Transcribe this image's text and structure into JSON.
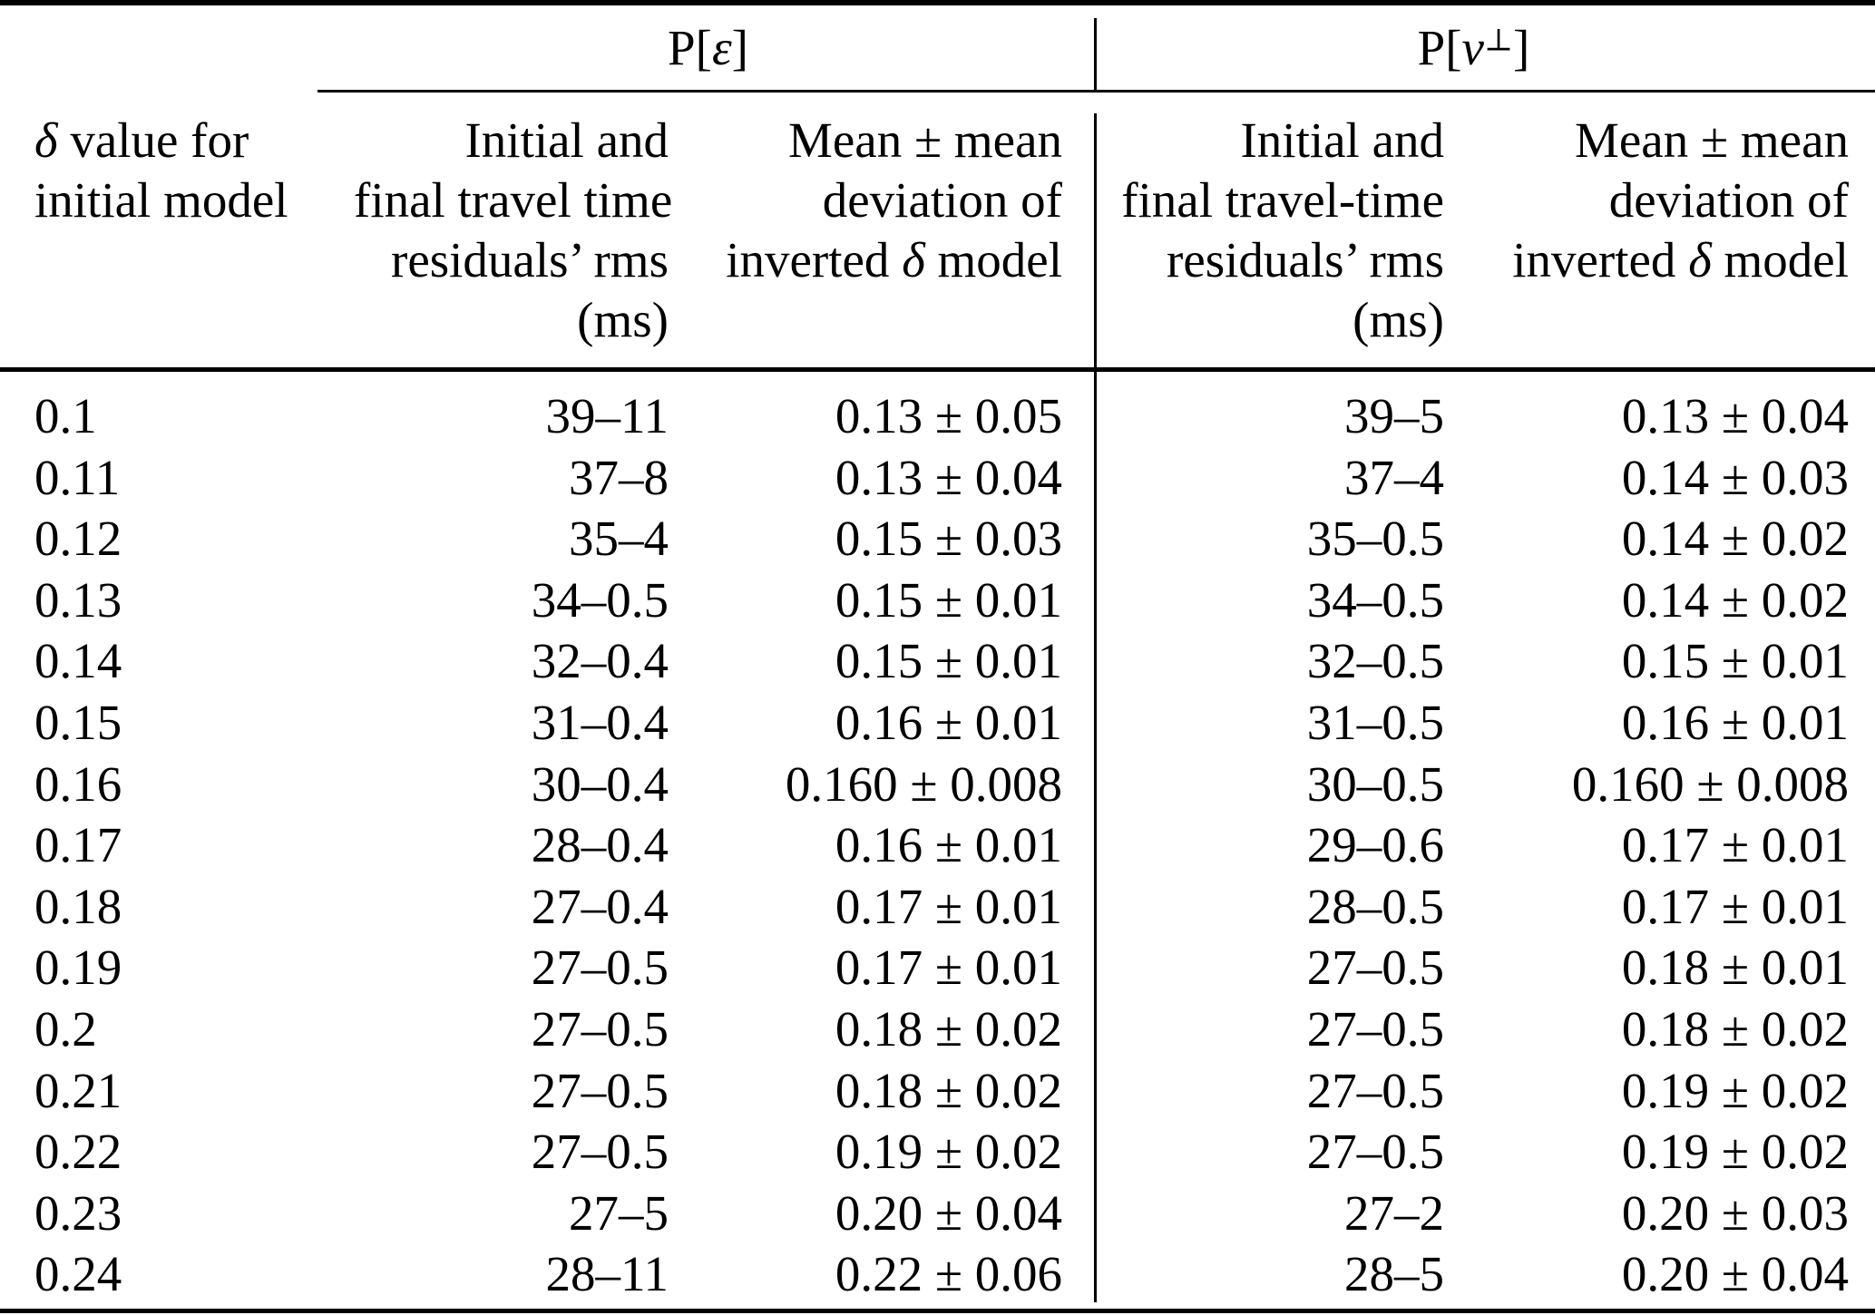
{
  "table": {
    "group_headers": {
      "p_epsilon": {
        "prefix": "P[",
        "sym": "ε",
        "suffix": "]"
      },
      "p_vperp": {
        "prefix": "P[",
        "sym": "v",
        "sup": "⊥",
        "suffix": "]"
      }
    },
    "col1_header": {
      "sym": "δ",
      "line1_rest": " value for",
      "line2": "initial model"
    },
    "col2_header": {
      "lines": [
        "Initial and",
        "final travel time",
        "residuals’ rms",
        "(ms)"
      ]
    },
    "col3_header": {
      "line1": "Mean ± mean",
      "line2": "deviation of",
      "line3_pre": "inverted ",
      "line3_sym": "δ",
      "line3_post": " model"
    },
    "col4_header": {
      "lines": [
        "Initial and",
        "final travel-time",
        "residuals’ rms",
        "(ms)"
      ]
    },
    "col5_header": {
      "line1": "Mean ± mean",
      "line2": "deviation of",
      "line3_pre": "inverted ",
      "line3_sym": "δ",
      "line3_post": " model"
    },
    "rows": [
      {
        "delta": "0.1",
        "eps_rms": "39–11",
        "eps_dev": "0.13 ± 0.05",
        "vperp_rms": "39–5",
        "vperp_dev": "0.13 ± 0.04"
      },
      {
        "delta": "0.11",
        "eps_rms": "37–8",
        "eps_dev": "0.13 ± 0.04",
        "vperp_rms": "37–4",
        "vperp_dev": "0.14 ± 0.03"
      },
      {
        "delta": "0.12",
        "eps_rms": "35–4",
        "eps_dev": "0.15 ± 0.03",
        "vperp_rms": "35–0.5",
        "vperp_dev": "0.14 ± 0.02"
      },
      {
        "delta": "0.13",
        "eps_rms": "34–0.5",
        "eps_dev": "0.15 ± 0.01",
        "vperp_rms": "34–0.5",
        "vperp_dev": "0.14 ± 0.02"
      },
      {
        "delta": "0.14",
        "eps_rms": "32–0.4",
        "eps_dev": "0.15 ± 0.01",
        "vperp_rms": "32–0.5",
        "vperp_dev": "0.15 ± 0.01"
      },
      {
        "delta": "0.15",
        "eps_rms": "31–0.4",
        "eps_dev": "0.16 ± 0.01",
        "vperp_rms": "31–0.5",
        "vperp_dev": "0.16 ± 0.01"
      },
      {
        "delta": "0.16",
        "eps_rms": "30–0.4",
        "eps_dev": "0.160 ± 0.008",
        "vperp_rms": "30–0.5",
        "vperp_dev": "0.160 ± 0.008"
      },
      {
        "delta": "0.17",
        "eps_rms": "28–0.4",
        "eps_dev": "0.16 ± 0.01",
        "vperp_rms": "29–0.6",
        "vperp_dev": "0.17 ± 0.01"
      },
      {
        "delta": "0.18",
        "eps_rms": "27–0.4",
        "eps_dev": "0.17 ± 0.01",
        "vperp_rms": "28–0.5",
        "vperp_dev": "0.17 ± 0.01"
      },
      {
        "delta": "0.19",
        "eps_rms": "27–0.5",
        "eps_dev": "0.17 ± 0.01",
        "vperp_rms": "27–0.5",
        "vperp_dev": "0.18 ± 0.01"
      },
      {
        "delta": "0.2",
        "eps_rms": "27–0.5",
        "eps_dev": "0.18 ± 0.02",
        "vperp_rms": "27–0.5",
        "vperp_dev": "0.18 ± 0.02"
      },
      {
        "delta": "0.21",
        "eps_rms": "27–0.5",
        "eps_dev": "0.18 ± 0.02",
        "vperp_rms": "27–0.5",
        "vperp_dev": "0.19 ± 0.02"
      },
      {
        "delta": "0.22",
        "eps_rms": "27–0.5",
        "eps_dev": "0.19 ± 0.02",
        "vperp_rms": "27–0.5",
        "vperp_dev": "0.19 ± 0.02"
      },
      {
        "delta": "0.23",
        "eps_rms": "27–5",
        "eps_dev": "0.20 ± 0.04",
        "vperp_rms": "27–2",
        "vperp_dev": "0.20 ± 0.03"
      },
      {
        "delta": "0.24",
        "eps_rms": "28–11",
        "eps_dev": "0.22 ± 0.06",
        "vperp_rms": "28–5",
        "vperp_dev": "0.20 ± 0.04"
      }
    ]
  }
}
